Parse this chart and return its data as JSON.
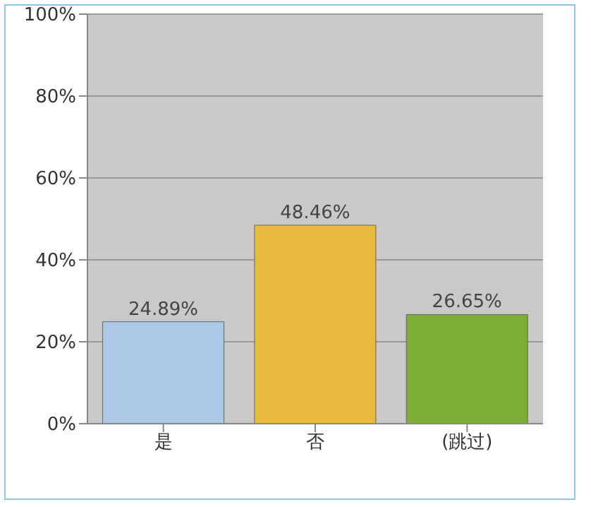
{
  "chart_data": {
    "type": "bar",
    "categories": [
      "是",
      "否",
      "(跳过)"
    ],
    "values": [
      24.89,
      48.46,
      26.65
    ],
    "colors": [
      "#a9c9e4",
      "#e9bb3c",
      "#7fae34"
    ],
    "value_labels": [
      "24.89%",
      "48.46%",
      "26.65%"
    ],
    "ylim": [
      0,
      100
    ],
    "yticks": [
      {
        "value": 0,
        "label": "0%"
      },
      {
        "value": 20,
        "label": "20%"
      },
      {
        "value": 40,
        "label": "40%"
      },
      {
        "value": 60,
        "label": "60%"
      },
      {
        "value": 80,
        "label": "80%"
      },
      {
        "value": 100,
        "label": "100%"
      }
    ],
    "grid": "y",
    "legend": false
  }
}
